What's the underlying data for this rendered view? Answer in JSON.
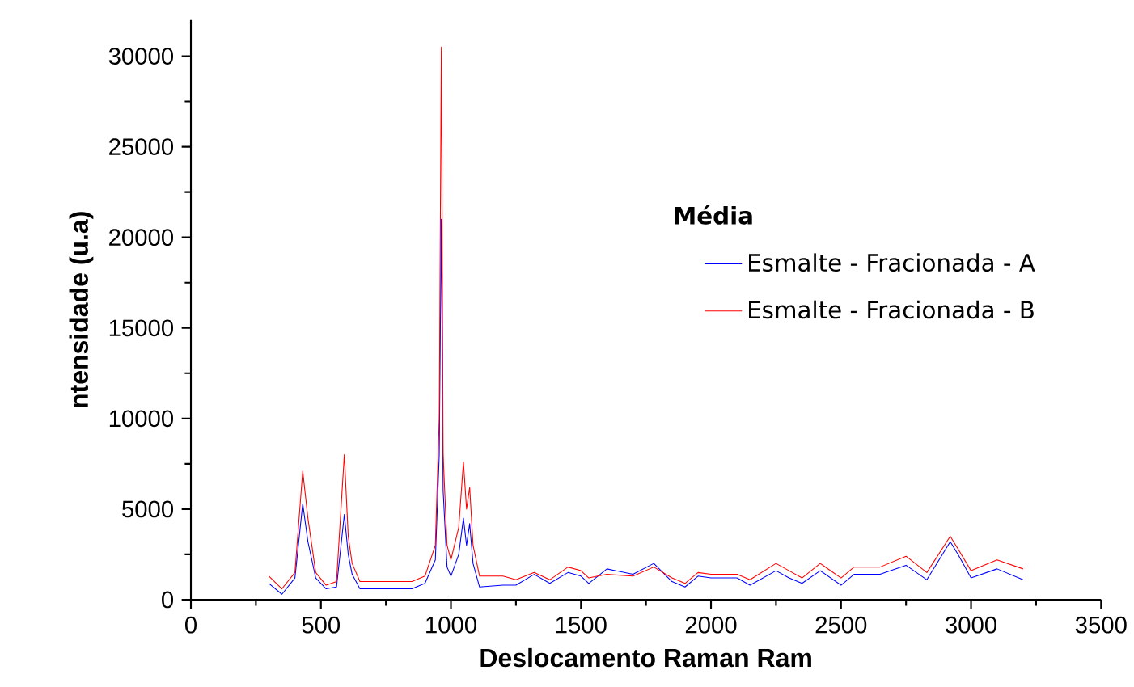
{
  "chart_data": {
    "type": "line",
    "xlabel": "Deslocamento Raman Ram",
    "ylabel": "ntensidade (u.a)",
    "legend_title": "Média",
    "xlim": [
      0,
      3500
    ],
    "xticks": [
      0,
      500,
      1000,
      1500,
      2000,
      2500,
      3000,
      3500
    ],
    "ylim": [
      0,
      32000
    ],
    "yticks": [
      0,
      5000,
      10000,
      15000,
      20000,
      25000,
      30000
    ],
    "grid": false,
    "legend": "right",
    "marker": "none",
    "line_style": "solid",
    "series": [
      {
        "name": "Esmalte - Fracionada - A",
        "color": "#0000ff",
        "x": [
          300,
          350,
          400,
          430,
          450,
          480,
          520,
          560,
          590,
          605,
          620,
          650,
          700,
          800,
          850,
          900,
          940,
          955,
          963,
          970,
          985,
          1000,
          1030,
          1048,
          1060,
          1072,
          1085,
          1110,
          1200,
          1250,
          1320,
          1380,
          1450,
          1500,
          1530,
          1600,
          1700,
          1780,
          1850,
          1900,
          1950,
          2000,
          2100,
          2150,
          2250,
          2300,
          2350,
          2420,
          2500,
          2550,
          2650,
          2750,
          2830,
          2920,
          2950,
          3000,
          3100,
          3200
        ],
        "values": [
          900,
          300,
          1200,
          5300,
          3200,
          1200,
          600,
          700,
          4700,
          2500,
          1400,
          600,
          600,
          600,
          600,
          900,
          2200,
          8000,
          21000,
          6000,
          1800,
          1300,
          2500,
          4500,
          3000,
          4200,
          2000,
          700,
          800,
          800,
          1400,
          900,
          1500,
          1300,
          900,
          1700,
          1400,
          2000,
          1000,
          700,
          1300,
          1200,
          1200,
          800,
          1600,
          1200,
          900,
          1600,
          800,
          1400,
          1400,
          1900,
          1100,
          3200,
          2500,
          1200,
          1700,
          1100
        ]
      },
      {
        "name": "Esmalte - Fracionada - B",
        "color": "#ff0000",
        "x": [
          300,
          350,
          400,
          430,
          450,
          480,
          520,
          560,
          590,
          605,
          620,
          650,
          700,
          800,
          850,
          900,
          940,
          955,
          963,
          970,
          985,
          1000,
          1030,
          1048,
          1060,
          1072,
          1085,
          1110,
          1200,
          1250,
          1320,
          1380,
          1450,
          1500,
          1530,
          1600,
          1700,
          1780,
          1850,
          1900,
          1950,
          2000,
          2100,
          2150,
          2250,
          2300,
          2350,
          2420,
          2500,
          2550,
          2650,
          2750,
          2830,
          2920,
          2950,
          3000,
          3100,
          3200
        ],
        "values": [
          1300,
          600,
          1500,
          7100,
          4500,
          1500,
          800,
          1000,
          8000,
          3500,
          2000,
          1000,
          1000,
          1000,
          1000,
          1300,
          3000,
          10000,
          30500,
          8000,
          3000,
          2200,
          4000,
          7600,
          5000,
          6200,
          3000,
          1300,
          1300,
          1100,
          1500,
          1100,
          1800,
          1600,
          1200,
          1400,
          1300,
          1800,
          1200,
          900,
          1500,
          1400,
          1400,
          1100,
          2000,
          1600,
          1200,
          2000,
          1200,
          1800,
          1800,
          2400,
          1500,
          3500,
          2800,
          1600,
          2200,
          1700
        ]
      }
    ]
  }
}
